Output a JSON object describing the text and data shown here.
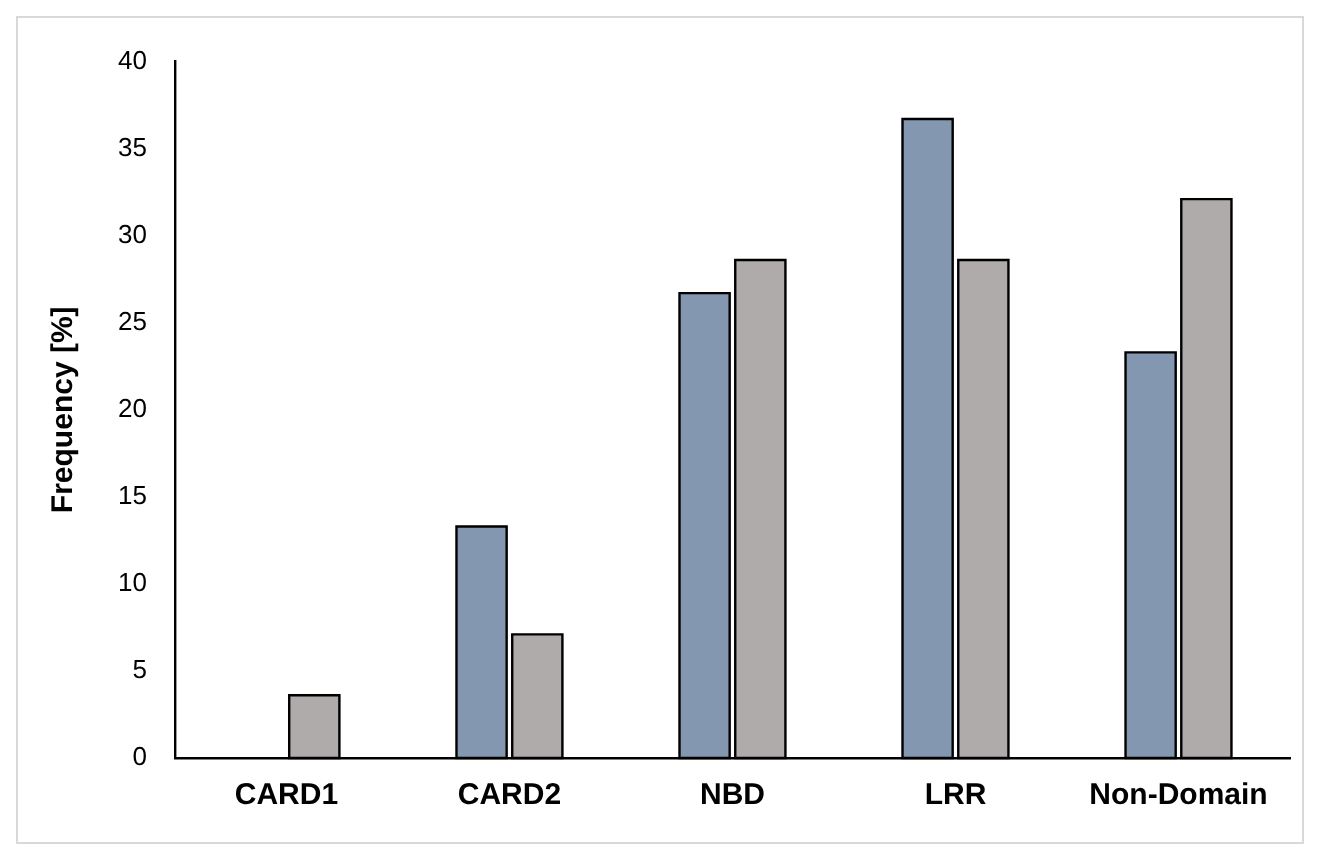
{
  "chart_data": {
    "type": "bar",
    "ylabel": "Frequency [%]",
    "categories": [
      "CARD1",
      "CARD2",
      "NBD",
      "LRR",
      "Non-Domain"
    ],
    "series": [
      {
        "color": "#8497b0",
        "values": [
          0,
          13.3,
          26.7,
          36.7,
          23.3
        ]
      },
      {
        "color": "#afabab",
        "values": [
          3.6,
          7.1,
          28.6,
          28.6,
          32.1
        ]
      }
    ],
    "ylim": [
      0,
      40
    ],
    "yticks": [
      0,
      5,
      10,
      15,
      20,
      25,
      30,
      35,
      40
    ],
    "grid": false,
    "legend": false
  }
}
